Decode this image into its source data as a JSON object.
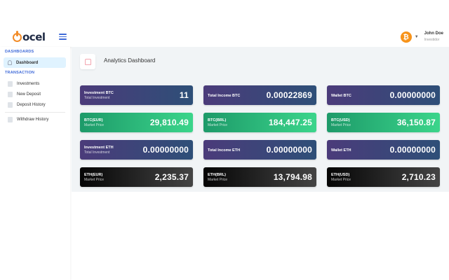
{
  "header": {
    "logo_text": "ocel",
    "user": {
      "name": "John Doe",
      "role": "Investidor",
      "avatar_glyph": "₿"
    }
  },
  "sidebar": {
    "dashboards_heading": "DASHBOARDS",
    "dashboard_item": "Dashboard",
    "transaction_heading": "TRANSACTION",
    "items": [
      {
        "label": "Investments"
      },
      {
        "label": "New Deposit"
      },
      {
        "label": "Deposit History"
      },
      {
        "label": "Withdraw History"
      }
    ]
  },
  "main": {
    "title": "Analytics Dashboard"
  },
  "cards": [
    {
      "title": "Investment BTC",
      "subtitle": "Total Investment",
      "value": "11",
      "style": "purple"
    },
    {
      "title": "Total Income BTC",
      "subtitle": "",
      "value": "0.00022869",
      "style": "purple"
    },
    {
      "title": "Wallet BTC",
      "subtitle": "",
      "value": "0.00000000",
      "style": "purple"
    },
    {
      "title": "BTC(EUR)",
      "subtitle": "Market Price",
      "value": "29,810.49",
      "style": "green"
    },
    {
      "title": "BTC(BRL)",
      "subtitle": "Market Price",
      "value": "184,447.25",
      "style": "green"
    },
    {
      "title": "BTC(USD)",
      "subtitle": "Market Price",
      "value": "36,150.87",
      "style": "green"
    },
    {
      "title": "Investment ETH",
      "subtitle": "Total Investment",
      "value": "0.00000000",
      "style": "purple"
    },
    {
      "title": "Total Income ETH",
      "subtitle": "",
      "value": "0.00000000",
      "style": "purple"
    },
    {
      "title": "Wallet ETH",
      "subtitle": "",
      "value": "0.00000000",
      "style": "purple"
    },
    {
      "title": "ETH(EUR)",
      "subtitle": "Market Price",
      "value": "2,235.37",
      "style": "black"
    },
    {
      "title": "ETH(BRL)",
      "subtitle": "Market Price",
      "value": "13,794.98",
      "style": "black"
    },
    {
      "title": "ETH(USD)",
      "subtitle": "Market Price",
      "value": "2,710.23",
      "style": "black"
    }
  ],
  "colors": {
    "accent": "#3f6ad8",
    "purple_start": "#4b3b7a",
    "purple_end": "#2e4f78",
    "green_start": "#1d9a69",
    "green_end": "#3bd58b",
    "black_start": "#050505",
    "black_end": "#444444",
    "bitcoin": "#f7931a"
  },
  "icons": {
    "logo": "ocel-logo-icon",
    "menu": "hamburger-menu-icon",
    "avatar": "bitcoin-icon",
    "dashboard": "rocket-icon",
    "title": "tag-icon",
    "nav_items": "page-icon"
  }
}
